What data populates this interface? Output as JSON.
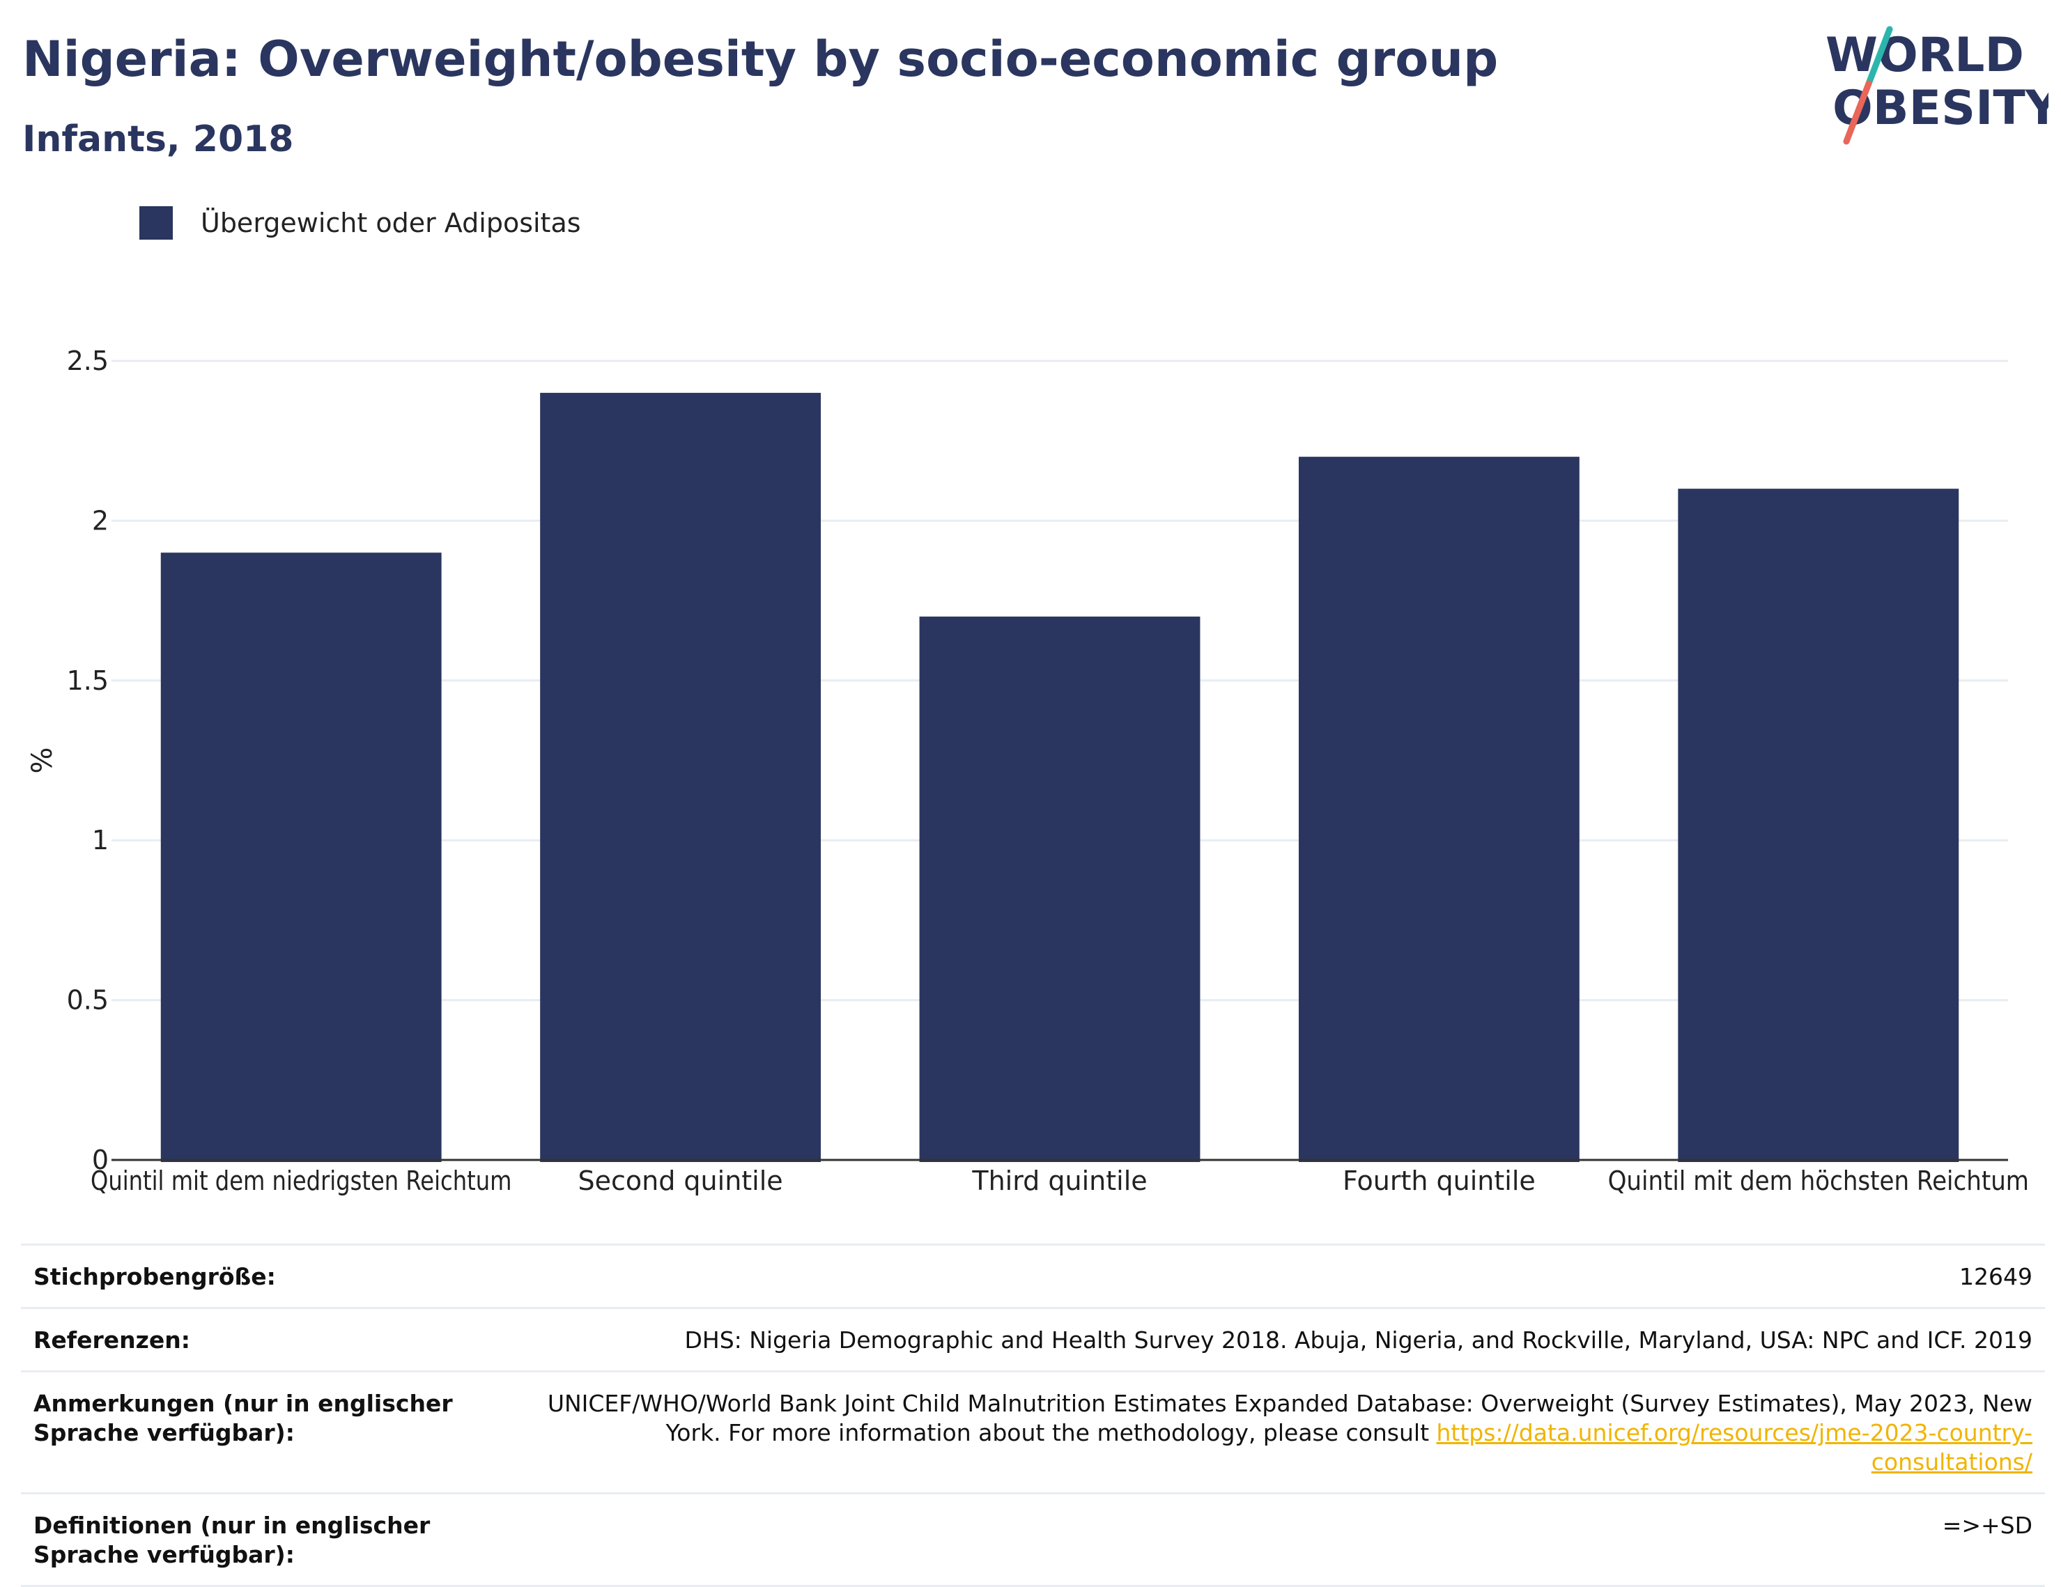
{
  "header": {
    "title": "Nigeria: Overweight/obesity by socio-economic group",
    "subtitle": "Infants, 2018"
  },
  "logo": {
    "line1": "WORLD",
    "line2": "OBESITY"
  },
  "colors": {
    "bar": "#2a365f",
    "title": "#2a365f",
    "grid": "#e8ecf3",
    "link": "#f0b400",
    "logo_accent_top": "#2bb5ad",
    "logo_accent_bottom": "#e8665a"
  },
  "chart_data": {
    "type": "bar",
    "categories": [
      "Quintil mit dem niedrigsten Reichtum",
      "Second quintile",
      "Third quintile",
      "Fourth quintile",
      "Quintil mit dem höchsten Reichtum"
    ],
    "series": [
      {
        "name": "Übergewicht oder Adipositas",
        "values": [
          1.9,
          2.4,
          1.7,
          2.2,
          2.1
        ]
      }
    ],
    "ylabel": "%",
    "xlabel": "",
    "ylim": [
      0,
      2.5
    ],
    "yticks": [
      "0",
      "0.5",
      "1",
      "1.5",
      "2",
      "2.5"
    ],
    "grid": true,
    "legend_position": "top-left"
  },
  "footer": {
    "rows": [
      {
        "label": "Stichprobengröße:",
        "value": "12649"
      },
      {
        "label": "Referenzen:",
        "value": "DHS: Nigeria Demographic and Health Survey 2018. Abuja, Nigeria, and Rockville, Maryland, USA: NPC and ICF. 2019"
      },
      {
        "label": "Anmerkungen (nur in englischer Sprache verfügbar):",
        "value": "UNICEF/WHO/World Bank Joint Child Malnutrition Estimates Expanded Database: Overweight (Survey Estimates), May 2023, New York. For more information about the methodology, please consult ",
        "link": "https://data.unicef.org/resources/jme-2023-country-consultations/"
      },
      {
        "label": "Definitionen (nur in englischer Sprache verfügbar):",
        "value": "=>+SD"
      }
    ]
  }
}
